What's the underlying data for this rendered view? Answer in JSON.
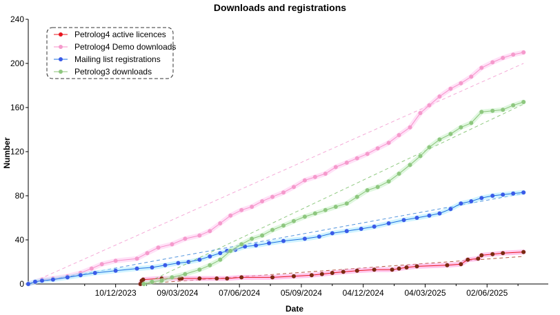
{
  "chart_data": {
    "type": "line",
    "title": "Downloads and registrations",
    "xlabel": "Date",
    "ylabel": "Number",
    "ylim": [
      0,
      240
    ],
    "yticks": [
      0,
      40,
      80,
      120,
      160,
      200,
      240
    ],
    "xlim": [
      "2023-08-05",
      "2025-08-30"
    ],
    "xticks": [
      "2023-12-10",
      "2024-03-09",
      "2024-06-07",
      "2024-09-05",
      "2024-12-04",
      "2025-03-04",
      "2025-06-02"
    ],
    "xtick_labels": [
      "10/12/2023",
      "09/03/2024",
      "07/06/2024",
      "05/09/2024",
      "04/12/2024",
      "04/03/2025",
      "02/06/2025"
    ],
    "legend": {
      "placement": "top-left",
      "border": "dashed"
    },
    "grid": false,
    "series": [
      {
        "name": "Petrolog4 active licences",
        "color": "#e8141e",
        "marker_color": "#7a2a10",
        "halo_color": "#ff9be0",
        "trend": {
          "color": "#a83a20",
          "from": [
            "2024-01-15",
            0
          ],
          "to": [
            "2025-07-25",
            25
          ]
        },
        "points": [
          [
            "2024-01-15",
            0
          ],
          [
            "2024-01-17",
            3
          ],
          [
            "2024-01-19",
            4
          ],
          [
            "2024-02-15",
            5
          ],
          [
            "2024-03-12",
            5
          ],
          [
            "2024-03-15",
            5
          ],
          [
            "2024-04-10",
            5
          ],
          [
            "2024-05-05",
            5
          ],
          [
            "2024-05-20",
            5
          ],
          [
            "2024-06-10",
            6
          ],
          [
            "2024-07-25",
            6
          ],
          [
            "2024-08-25",
            7
          ],
          [
            "2024-09-20",
            8
          ],
          [
            "2024-10-05",
            9
          ],
          [
            "2024-10-20",
            10
          ],
          [
            "2024-11-05",
            11
          ],
          [
            "2024-11-25",
            12
          ],
          [
            "2024-12-20",
            13
          ],
          [
            "2025-01-15",
            13
          ],
          [
            "2025-01-25",
            14
          ],
          [
            "2025-02-05",
            15
          ],
          [
            "2025-02-20",
            16
          ],
          [
            "2025-04-05",
            17
          ],
          [
            "2025-04-25",
            18
          ],
          [
            "2025-05-05",
            22
          ],
          [
            "2025-05-20",
            23
          ],
          [
            "2025-05-25",
            26
          ],
          [
            "2025-06-10",
            27
          ],
          [
            "2025-06-25",
            28
          ],
          [
            "2025-07-25",
            29
          ]
        ]
      },
      {
        "name": "Petrolog4 Demo downloads",
        "color": "#f78fc9",
        "marker_color": "#f59acc",
        "halo_color": "#ffc8f0",
        "trend": {
          "color": "#f39ad0",
          "from": [
            "2023-08-05",
            0
          ],
          "to": [
            "2025-07-25",
            200
          ]
        },
        "points": [
          [
            "2023-08-05",
            0
          ],
          [
            "2023-08-15",
            2
          ],
          [
            "2023-08-25",
            4
          ],
          [
            "2023-09-10",
            5
          ],
          [
            "2023-10-01",
            7
          ],
          [
            "2023-10-20",
            10
          ],
          [
            "2023-11-05",
            14
          ],
          [
            "2023-11-20",
            18
          ],
          [
            "2023-12-10",
            21
          ],
          [
            "2024-01-10",
            23
          ],
          [
            "2024-01-25",
            28
          ],
          [
            "2024-02-10",
            33
          ],
          [
            "2024-03-01",
            36
          ],
          [
            "2024-03-20",
            41
          ],
          [
            "2024-04-10",
            44
          ],
          [
            "2024-04-25",
            48
          ],
          [
            "2024-05-10",
            55
          ],
          [
            "2024-05-25",
            62
          ],
          [
            "2024-06-10",
            67
          ],
          [
            "2024-06-25",
            70
          ],
          [
            "2024-07-10",
            75
          ],
          [
            "2024-07-25",
            79
          ],
          [
            "2024-08-10",
            83
          ],
          [
            "2024-08-25",
            88
          ],
          [
            "2024-09-10",
            94
          ],
          [
            "2024-09-25",
            97
          ],
          [
            "2024-10-10",
            100
          ],
          [
            "2024-10-25",
            106
          ],
          [
            "2024-11-10",
            110
          ],
          [
            "2024-11-25",
            114
          ],
          [
            "2024-12-10",
            118
          ],
          [
            "2024-12-25",
            123
          ],
          [
            "2025-01-10",
            128
          ],
          [
            "2025-01-25",
            135
          ],
          [
            "2025-02-10",
            142
          ],
          [
            "2025-02-25",
            155
          ],
          [
            "2025-03-10",
            162
          ],
          [
            "2025-03-25",
            170
          ],
          [
            "2025-04-10",
            177
          ],
          [
            "2025-04-25",
            182
          ],
          [
            "2025-05-10",
            188
          ],
          [
            "2025-05-25",
            196
          ],
          [
            "2025-06-10",
            201
          ],
          [
            "2025-06-25",
            205
          ],
          [
            "2025-07-10",
            208
          ],
          [
            "2025-07-25",
            210
          ]
        ]
      },
      {
        "name": "Mailing list registrations",
        "color": "#1a6fe0",
        "marker_color": "#3a5ae8",
        "halo_color": "#a9e9ff",
        "trend": {
          "color": "#3080d8",
          "from": [
            "2023-08-05",
            0
          ],
          "to": [
            "2025-07-25",
            82
          ]
        },
        "points": [
          [
            "2023-08-05",
            0
          ],
          [
            "2023-08-15",
            2
          ],
          [
            "2023-08-25",
            3
          ],
          [
            "2023-09-10",
            4
          ],
          [
            "2023-10-01",
            6
          ],
          [
            "2023-10-20",
            8
          ],
          [
            "2023-11-10",
            10
          ],
          [
            "2023-12-10",
            12
          ],
          [
            "2024-01-10",
            14
          ],
          [
            "2024-02-01",
            15
          ],
          [
            "2024-02-20",
            17
          ],
          [
            "2024-03-10",
            19
          ],
          [
            "2024-03-25",
            20
          ],
          [
            "2024-04-10",
            22
          ],
          [
            "2024-04-25",
            25
          ],
          [
            "2024-05-10",
            28
          ],
          [
            "2024-05-20",
            30
          ],
          [
            "2024-06-01",
            31
          ],
          [
            "2024-06-15",
            34
          ],
          [
            "2024-07-01",
            35
          ],
          [
            "2024-07-20",
            37
          ],
          [
            "2024-08-10",
            39
          ],
          [
            "2024-09-10",
            41
          ],
          [
            "2024-10-01",
            43
          ],
          [
            "2024-10-20",
            46
          ],
          [
            "2024-11-10",
            48
          ],
          [
            "2024-12-01",
            50
          ],
          [
            "2024-12-20",
            52
          ],
          [
            "2025-01-10",
            55
          ],
          [
            "2025-02-01",
            58
          ],
          [
            "2025-02-20",
            60
          ],
          [
            "2025-03-10",
            62
          ],
          [
            "2025-03-25",
            64
          ],
          [
            "2025-04-10",
            68
          ],
          [
            "2025-04-25",
            73
          ],
          [
            "2025-05-10",
            75
          ],
          [
            "2025-05-25",
            78
          ],
          [
            "2025-06-10",
            80
          ],
          [
            "2025-06-25",
            81
          ],
          [
            "2025-07-10",
            82
          ],
          [
            "2025-07-25",
            83
          ]
        ]
      },
      {
        "name": "Petrolog3 downloads",
        "color": "#88c276",
        "marker_color": "#8ec77f",
        "halo_color": "#c6f0c6",
        "trend": {
          "color": "#7cc06a",
          "from": [
            "2024-01-20",
            0
          ],
          "to": [
            "2025-07-25",
            163
          ]
        },
        "points": [
          [
            "2024-01-20",
            0
          ],
          [
            "2024-02-01",
            2
          ],
          [
            "2024-02-15",
            3
          ],
          [
            "2024-03-01",
            6
          ],
          [
            "2024-03-20",
            9
          ],
          [
            "2024-04-10",
            13
          ],
          [
            "2024-04-25",
            17
          ],
          [
            "2024-05-10",
            22
          ],
          [
            "2024-05-25",
            30
          ],
          [
            "2024-06-10",
            36
          ],
          [
            "2024-06-25",
            41
          ],
          [
            "2024-07-10",
            44
          ],
          [
            "2024-07-25",
            49
          ],
          [
            "2024-08-10",
            53
          ],
          [
            "2024-08-25",
            57
          ],
          [
            "2024-09-10",
            61
          ],
          [
            "2024-09-25",
            64
          ],
          [
            "2024-10-10",
            67
          ],
          [
            "2024-10-25",
            70
          ],
          [
            "2024-11-10",
            73
          ],
          [
            "2024-11-25",
            79
          ],
          [
            "2024-12-10",
            85
          ],
          [
            "2024-12-25",
            88
          ],
          [
            "2025-01-10",
            93
          ],
          [
            "2025-01-25",
            100
          ],
          [
            "2025-02-10",
            108
          ],
          [
            "2025-02-25",
            116
          ],
          [
            "2025-03-10",
            124
          ],
          [
            "2025-03-25",
            131
          ],
          [
            "2025-04-10",
            136
          ],
          [
            "2025-04-25",
            142
          ],
          [
            "2025-05-10",
            146
          ],
          [
            "2025-05-25",
            156
          ],
          [
            "2025-06-10",
            157
          ],
          [
            "2025-06-25",
            158
          ],
          [
            "2025-07-10",
            162
          ],
          [
            "2025-07-25",
            165
          ]
        ]
      }
    ]
  }
}
